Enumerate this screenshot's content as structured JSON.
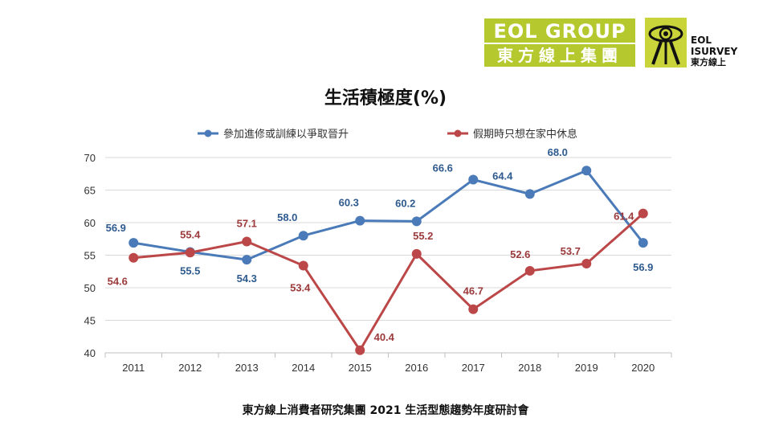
{
  "logos": {
    "eol_group_top": "EOL GROUP",
    "eol_group_bottom": "東方線上集團",
    "isurvey_line1": "EOL",
    "isurvey_line2": "ISURVEY",
    "isurvey_line3": "東方線上"
  },
  "footer": "東方線上消費者研究集團 2021 生活型態趨勢年度研討會",
  "chart_data": {
    "type": "line",
    "title": "生活積極度(%)",
    "xlabel": "",
    "ylabel": "",
    "categories": [
      "2011",
      "2012",
      "2013",
      "2014",
      "2015",
      "2016",
      "2017",
      "2018",
      "2019",
      "2020"
    ],
    "ylim": [
      40,
      70
    ],
    "yticks": [
      40,
      45,
      50,
      55,
      60,
      65,
      70
    ],
    "grid": true,
    "legend_position": "top",
    "series": [
      {
        "name": "參加進修或訓練以爭取晉升",
        "color": "#4a7ab8",
        "values": [
          56.9,
          55.5,
          54.3,
          58.0,
          60.3,
          60.2,
          66.6,
          64.4,
          68.0,
          56.9
        ],
        "labels": [
          "56.9",
          "55.5",
          "54.3",
          "58.0",
          "60.3",
          "60.2",
          "66.6",
          "64.4",
          "68.0",
          "56.9"
        ]
      },
      {
        "name": "假期時只想在家中休息",
        "color": "#bc4748",
        "values": [
          54.6,
          55.4,
          57.1,
          53.4,
          40.4,
          55.2,
          46.7,
          52.6,
          53.7,
          61.4
        ],
        "labels": [
          "54.6",
          "55.4",
          "57.1",
          "53.4",
          "40.4",
          "55.2",
          "46.7",
          "52.6",
          "53.7",
          "61.4"
        ]
      }
    ]
  }
}
